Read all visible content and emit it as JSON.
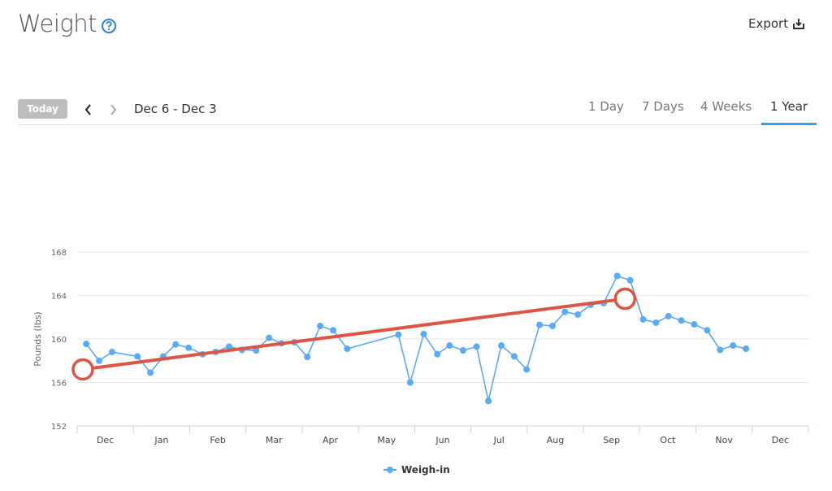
{
  "header": {
    "title": "Weight",
    "export": "Export"
  },
  "toolbar": {
    "today": "Today",
    "range": "Dec 6 - Dec 3",
    "tabs": [
      "1 Day",
      "7 Days",
      "4 Weeks",
      "1 Year"
    ],
    "active_tab": 3
  },
  "chart_data": {
    "type": "line",
    "y_label": "Pounds (lbs)",
    "categories": [
      "Dec",
      "Jan",
      "Feb",
      "Mar",
      "Apr",
      "May",
      "Jun",
      "Jul",
      "Aug",
      "Sep",
      "Oct",
      "Nov",
      "Dec"
    ],
    "xlim": [
      0,
      13
    ],
    "xticks": [
      0,
      1,
      2,
      3,
      4,
      5,
      6,
      7,
      8,
      9,
      10,
      11,
      12,
      13
    ],
    "ylim": [
      152,
      168
    ],
    "yticks": [
      152,
      156,
      160,
      164,
      168
    ],
    "grid": true,
    "legend": "bottom",
    "series": [
      {
        "name": "Weigh-in",
        "color": "#5aabf5",
        "x": [
          0.16,
          0.39,
          0.62,
          1.07,
          1.3,
          1.53,
          1.75,
          1.98,
          2.23,
          2.46,
          2.7,
          2.93,
          3.18,
          3.41,
          3.63,
          3.86,
          4.09,
          4.32,
          4.55,
          4.8,
          5.71,
          5.92,
          6.16,
          6.4,
          6.62,
          6.86,
          7.1,
          7.31,
          7.54,
          7.77,
          7.99,
          8.22,
          8.45,
          8.67,
          8.9,
          9.13,
          9.36,
          9.6,
          9.83,
          10.06,
          10.29,
          10.51,
          10.74,
          10.97,
          11.2,
          11.43,
          11.66,
          11.89
        ],
        "values": [
          159.55,
          158.0,
          158.8,
          158.4,
          156.9,
          158.4,
          159.5,
          159.2,
          158.6,
          158.8,
          159.3,
          159.0,
          158.95,
          160.1,
          159.6,
          159.7,
          158.35,
          161.2,
          160.8,
          159.1,
          160.4,
          156.0,
          160.45,
          158.6,
          159.4,
          158.95,
          159.3,
          154.3,
          159.4,
          158.4,
          157.2,
          161.3,
          161.2,
          162.5,
          162.25,
          163.15,
          163.3,
          165.8,
          165.4,
          161.8,
          161.5,
          162.1,
          161.7,
          161.35,
          160.8,
          159.0,
          159.4,
          159.1
        ]
      }
    ],
    "trend": {
      "color": "#dd5544",
      "x": [
        0.1,
        9.74
      ],
      "values": [
        157.2,
        163.7
      ]
    }
  }
}
